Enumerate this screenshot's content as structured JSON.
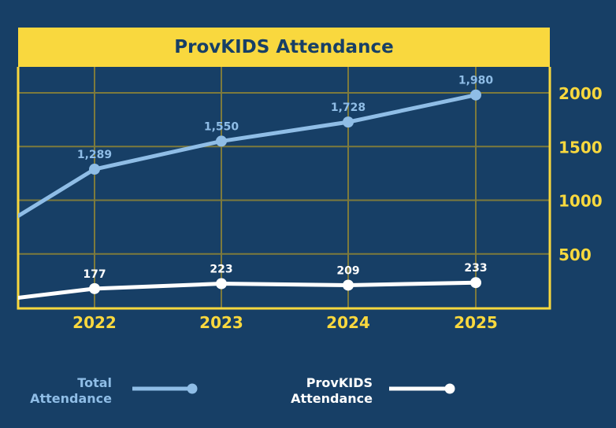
{
  "chart_data": {
    "type": "line",
    "title": "ProvKIDS Attendance",
    "categories": [
      "2022",
      "2023",
      "2024",
      "2025"
    ],
    "yticks": [
      500,
      1000,
      1500,
      2000
    ],
    "ylim": [
      0,
      2250
    ],
    "y_axis_position": "right",
    "grid": true,
    "legend_placement": "bottom",
    "series": [
      {
        "name": "Total Attendance",
        "values": [
          1289,
          1550,
          1728,
          1980
        ],
        "labels": [
          "1,289",
          "1,550",
          "1,728",
          "1,980"
        ],
        "prior_value_offscreen": 565,
        "color": "#8fbde6"
      },
      {
        "name": "ProvKIDS Attendance",
        "values": [
          177,
          223,
          209,
          233
        ],
        "labels": [
          "177",
          "223",
          "209",
          "233"
        ],
        "prior_value_offscreen": 35,
        "color": "#ffffff"
      }
    ]
  },
  "legend": {
    "total_line1": "Total",
    "total_line2": "Attendance",
    "provkids_line1": "ProvKIDS",
    "provkids_line2": "Attendance"
  },
  "colors": {
    "background": "#173f66",
    "accent": "#f9d83e",
    "grid": "#7d7a3c"
  }
}
